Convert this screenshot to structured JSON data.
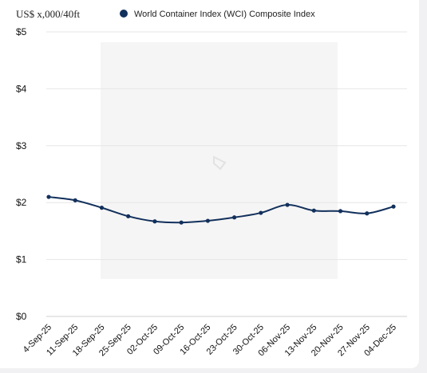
{
  "chart_data": {
    "type": "line",
    "y_unit_label": "US$ x,000/40ft",
    "legend": {
      "label": "World Container Index (WCI) Composite Index",
      "color": "#12305c",
      "position": "top"
    },
    "categories": [
      "4-Sep-25",
      "11-Sep-25",
      "18-Sep-25",
      "25-Sep-25",
      "02-Oct-25",
      "09-Oct-25",
      "16-Oct-25",
      "23-Oct-25",
      "30-Oct-25",
      "06-Nov-25",
      "13-Nov-25",
      "20-Nov-25",
      "27-Nov-25",
      "04-Dec-25"
    ],
    "series": [
      {
        "name": "World Container Index (WCI) Composite Index",
        "values": [
          2.1,
          2.04,
          1.91,
          1.76,
          1.67,
          1.65,
          1.68,
          1.74,
          1.82,
          1.96,
          1.86,
          1.85,
          1.81,
          1.93
        ]
      }
    ],
    "ylim": [
      0,
      5
    ],
    "yticks": [
      "$0",
      "$1",
      "$2",
      "$3",
      "$4",
      "$5"
    ],
    "grid": true,
    "line_color": "#12305c",
    "grid_color": "#e6e6e6"
  }
}
